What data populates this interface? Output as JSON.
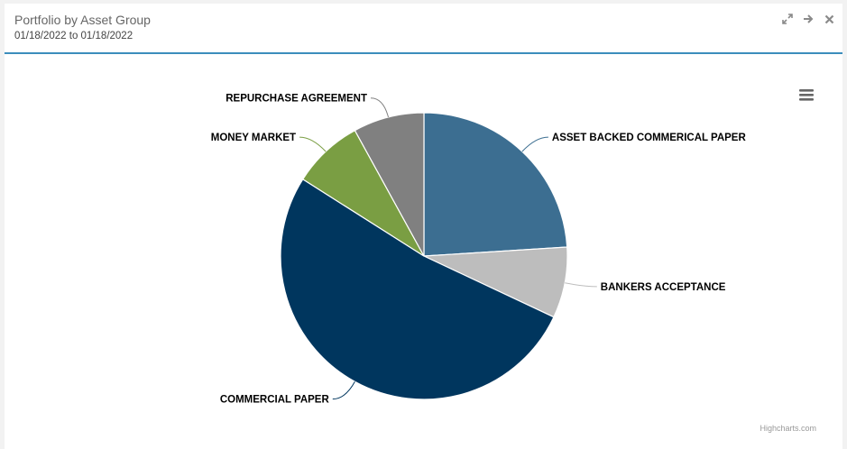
{
  "panel": {
    "title": "Portfolio by Asset Group",
    "subtitle": "01/18/2022 to 01/18/2022",
    "tools": [
      {
        "icon": "expand-icon"
      },
      {
        "icon": "arrow-right-icon"
      },
      {
        "icon": "close-icon"
      }
    ]
  },
  "chart_data": {
    "type": "pie",
    "slices": [
      {
        "name": "ASSET BACKED COMMERICAL PAPER",
        "value": 24.0,
        "color": "#3c6e91"
      },
      {
        "name": "BANKERS ACCEPTANCE",
        "value": 8.0,
        "color": "#bdbdbd"
      },
      {
        "name": "COMMERCIAL PAPER",
        "value": 52.0,
        "color": "#00365e"
      },
      {
        "name": "MONEY MARKET",
        "value": 8.0,
        "color": "#7a9e43"
      },
      {
        "name": "REPURCHASE AGREEMENT",
        "value": 8.0,
        "color": "#808080"
      }
    ],
    "start_angle_deg": 0,
    "credits": "Highcharts.com"
  },
  "colors": {
    "accent": "#3c8dbc",
    "connector_default": "#3c6e91"
  }
}
